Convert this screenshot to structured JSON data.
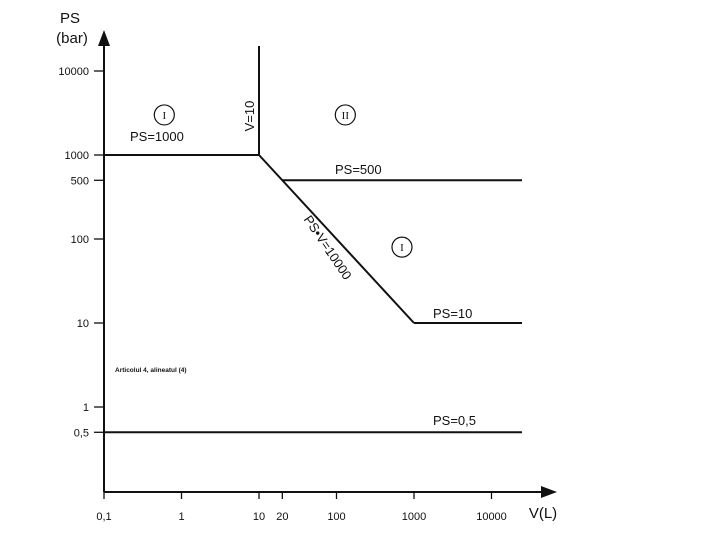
{
  "chart_data": {
    "type": "line",
    "title": "",
    "xlabel": "V(L)",
    "ylabel_line1": "PS",
    "ylabel_line2": "(bar)",
    "x_scale": "log",
    "y_scale": "log",
    "x_ticks": [
      {
        "value": 0.1,
        "label": "0,1"
      },
      {
        "value": 1,
        "label": "1"
      },
      {
        "value": 10,
        "label": "10"
      },
      {
        "value": 20,
        "label": "20"
      },
      {
        "value": 100,
        "label": "100"
      },
      {
        "value": 1000,
        "label": "1000"
      },
      {
        "value": 10000,
        "label": "10000"
      }
    ],
    "y_ticks": [
      {
        "value": 0.5,
        "label": "0,5"
      },
      {
        "value": 1,
        "label": "1"
      },
      {
        "value": 10,
        "label": "10"
      },
      {
        "value": 100,
        "label": "100"
      },
      {
        "value": 500,
        "label": "500"
      },
      {
        "value": 1000,
        "label": "1000"
      },
      {
        "value": 10000,
        "label": "10000"
      }
    ],
    "boundaries": [
      {
        "label": "PS=1000",
        "points": [
          [
            0.1,
            1000
          ],
          [
            10,
            1000
          ]
        ]
      },
      {
        "label": "V=10",
        "points": [
          [
            10,
            1000
          ],
          [
            10,
            20000
          ]
        ]
      },
      {
        "label": "PS•V=10000",
        "points": [
          [
            10,
            1000
          ],
          [
            1000,
            10
          ]
        ]
      },
      {
        "label": "PS=500",
        "points": [
          [
            20,
            500
          ],
          [
            40000,
            500
          ]
        ]
      },
      {
        "label": "PS=10",
        "points": [
          [
            1000,
            10
          ],
          [
            40000,
            10
          ]
        ]
      },
      {
        "label": "PS=0,5",
        "points": [
          [
            0.1,
            0.5
          ],
          [
            40000,
            0.5
          ]
        ]
      }
    ],
    "zones": [
      {
        "label": "I",
        "x": 0.6,
        "y": 3000
      },
      {
        "label": "II",
        "x": 130,
        "y": 3000
      },
      {
        "label": "I",
        "x": 700,
        "y": 80
      }
    ],
    "note": "Articolul 4, alineatul (4)"
  }
}
